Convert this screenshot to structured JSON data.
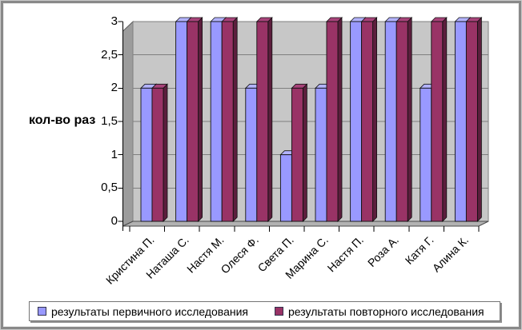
{
  "chart_data": {
    "type": "bar",
    "projection": "3d-clustered-column",
    "title": "",
    "ylabel": "кол-во раз",
    "xlabel": "",
    "categories": [
      "Кристина П.",
      "Наташа С.",
      "Настя М.",
      "Олеся Ф.",
      "Света П.",
      "Марина С.",
      "Настя П.",
      "Роза А.",
      "Катя Г.",
      "Алина К."
    ],
    "series": [
      {
        "name": "результаты первичного исследования",
        "color": "#9999FF",
        "color_light": "#B3B3FF",
        "color_dark": "#62629E",
        "values": [
          2,
          3,
          3,
          2,
          1,
          2,
          3,
          3,
          2,
          3
        ]
      },
      {
        "name": "результаты повторного исследования",
        "color": "#993366",
        "color_light": "#A8437A",
        "color_dark": "#5C1E3D",
        "values": [
          2,
          3,
          3,
          3,
          2,
          3,
          3,
          3,
          3,
          3
        ]
      }
    ],
    "ylim": [
      0,
      3
    ],
    "ytick_step": 0.5,
    "ytick_labels": [
      "0",
      "0,5",
      "1",
      "1,5",
      "2",
      "2,5",
      "3"
    ],
    "grid": true,
    "legend_position": "bottom",
    "colors": {
      "background": "#FFFFFF",
      "wall": "#C7C7C7",
      "side_wall": "#9C9C9C",
      "floor": "#B2B2B2",
      "gridline": "#7F7F7F",
      "axis": "#000000",
      "bar_outline": "#111111"
    }
  }
}
